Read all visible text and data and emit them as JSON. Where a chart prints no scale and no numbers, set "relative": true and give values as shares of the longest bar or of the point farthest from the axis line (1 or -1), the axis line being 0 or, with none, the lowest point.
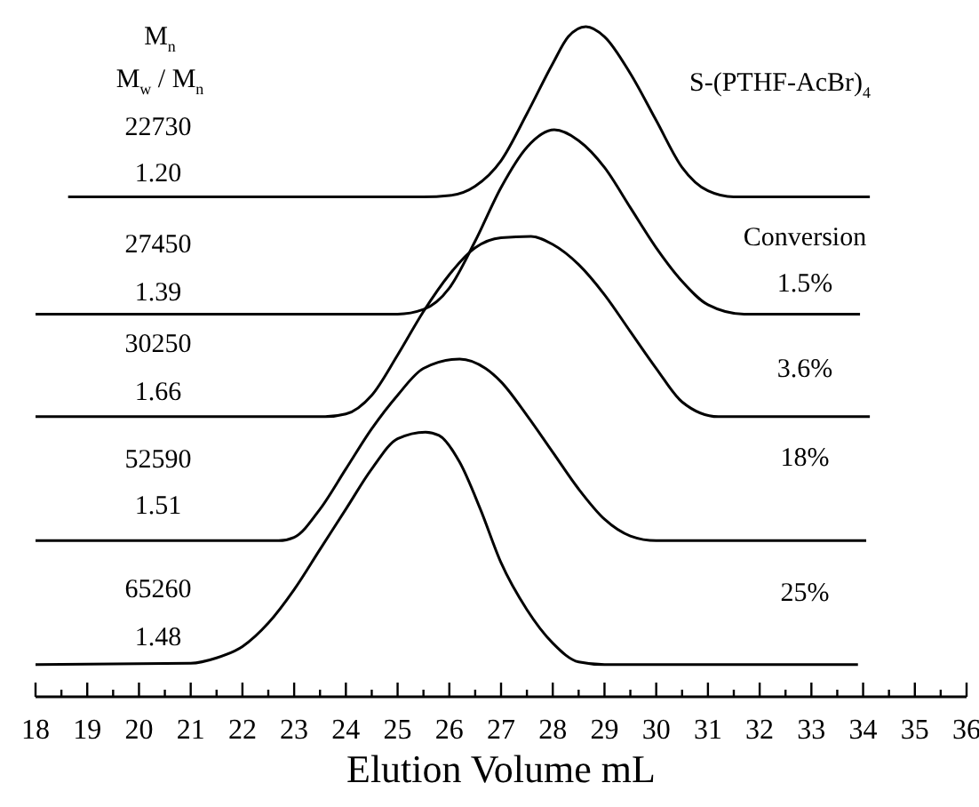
{
  "chart_data": {
    "type": "line",
    "relative": true,
    "xlabel": "Elution Volume  mL",
    "xlim": [
      18,
      36
    ],
    "xticks": [
      18,
      {
        "value": 18.5,
        "label": null
      },
      19,
      {
        "value": 19.5,
        "label": null
      },
      20,
      {
        "value": 20.5,
        "label": null
      },
      21,
      {
        "value": 21.5,
        "label": null
      },
      22,
      {
        "value": 22.5,
        "label": null
      },
      23,
      {
        "value": 23.5,
        "label": null
      },
      24,
      {
        "value": 24.5,
        "label": null
      },
      25,
      {
        "value": 25.5,
        "label": null
      },
      26,
      {
        "value": 26.5,
        "label": null
      },
      27,
      {
        "value": 27.5,
        "label": null
      },
      28,
      {
        "value": 28.5,
        "label": null
      },
      29,
      {
        "value": 29.5,
        "label": null
      },
      30,
      {
        "value": 30.5,
        "label": null
      },
      31,
      {
        "value": 31.5,
        "label": null
      },
      32,
      {
        "value": 32.5,
        "label": null
      },
      33,
      {
        "value": 33.5,
        "label": null
      },
      34,
      {
        "value": 34.5,
        "label": null
      },
      35,
      {
        "value": 35.5,
        "label": null
      },
      36
    ],
    "grid": false,
    "marker": "none",
    "line_style": "solid",
    "series": [
      {
        "color": "#000000",
        "x": [
          18.63,
          25.5,
          26,
          26.5,
          27,
          27.5,
          28,
          28.3,
          28.64,
          29,
          29.5,
          30,
          30.5,
          31,
          31.5,
          34.13
        ],
        "values": [
          0.746,
          0.746,
          0.748,
          0.762,
          0.8,
          0.87,
          0.945,
          0.985,
          1.0,
          0.985,
          0.93,
          0.86,
          0.79,
          0.755,
          0.746,
          0.746
        ]
      },
      {
        "color": "#000000",
        "x": [
          18,
          25,
          25.5,
          26,
          26.5,
          27,
          27.5,
          28.03,
          28.5,
          29,
          29.5,
          30,
          30.5,
          31,
          31.7,
          33.94
        ],
        "values": [
          0.571,
          0.571,
          0.578,
          0.61,
          0.68,
          0.76,
          0.82,
          0.846,
          0.83,
          0.79,
          0.73,
          0.67,
          0.62,
          0.585,
          0.571,
          0.571
        ]
      },
      {
        "color": "#000000",
        "x": [
          18,
          23.6,
          24,
          24.5,
          25,
          25.5,
          26,
          26.5,
          27,
          27.58,
          28,
          28.5,
          29,
          29.5,
          30,
          30.5,
          31.2,
          34.13
        ],
        "values": [
          0.418,
          0.418,
          0.422,
          0.45,
          0.51,
          0.575,
          0.63,
          0.67,
          0.685,
          0.687,
          0.675,
          0.645,
          0.6,
          0.545,
          0.49,
          0.44,
          0.418,
          0.418
        ]
      },
      {
        "color": "#000000",
        "x": [
          18,
          22.7,
          23,
          23.5,
          24,
          24.5,
          25,
          25.5,
          26.2,
          26.7,
          27,
          27.5,
          28,
          28.5,
          29,
          29.5,
          30,
          34.06
        ],
        "values": [
          0.233,
          0.233,
          0.238,
          0.28,
          0.34,
          0.4,
          0.45,
          0.49,
          0.504,
          0.49,
          0.47,
          0.42,
          0.365,
          0.31,
          0.265,
          0.24,
          0.233,
          0.233
        ]
      },
      {
        "color": "#000000",
        "x": [
          18,
          21,
          21.5,
          22,
          22.5,
          23,
          23.5,
          24,
          24.5,
          25,
          25.54,
          25.8,
          26.2,
          26.6,
          27,
          27.5,
          28,
          28.5,
          29,
          33.9
        ],
        "values": [
          0.048,
          0.05,
          0.058,
          0.075,
          0.11,
          0.16,
          0.22,
          0.28,
          0.34,
          0.385,
          0.395,
          0.39,
          0.35,
          0.28,
          0.2,
          0.13,
          0.08,
          0.052,
          0.048,
          0.048
        ]
      }
    ],
    "annotations": [
      "M$_{n}$",
      "M$_{w}$ / M$_{n}$",
      "22730",
      "1.20",
      "27450",
      "1.39",
      "30250",
      "1.66",
      "52590",
      "1.51",
      "65260",
      "1.48",
      "S-(PTHF-AcBr)$_{4}$",
      "Conversion",
      "1.5%",
      "3.6%",
      "18%",
      "25%"
    ]
  }
}
